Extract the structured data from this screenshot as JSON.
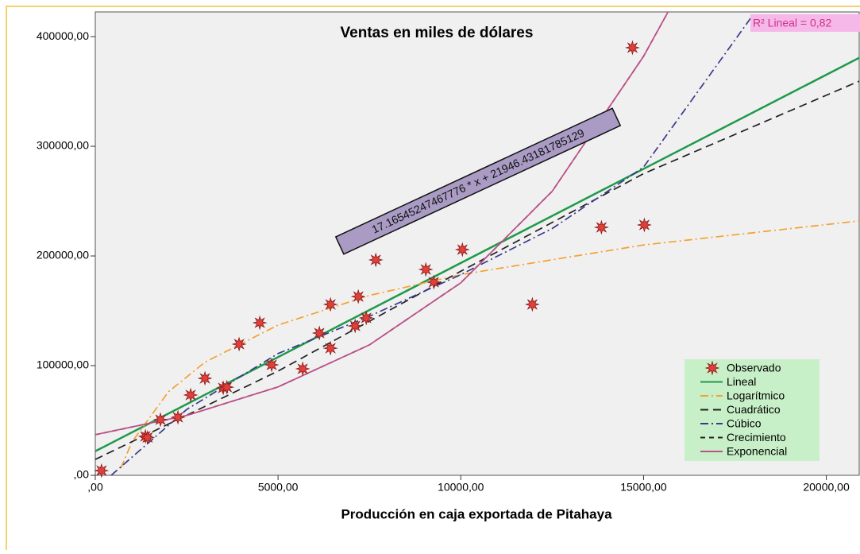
{
  "chart_data": {
    "type": "scatter",
    "title": "Ventas en miles de dólares",
    "x_label": "Producción en caja exportada de Pitahaya",
    "annotation": "17.16545247467776 * x + 21946.43181785129",
    "r2_label": "R² Lineal = 0,82",
    "xlim": [
      0,
      20900
    ],
    "ylim": [
      0,
      422500
    ],
    "xticks": [
      {
        "value": 0,
        "label": ",00"
      },
      {
        "value": 5000,
        "label": "5000,00"
      },
      {
        "value": 10000,
        "label": "10000,00"
      },
      {
        "value": 15000,
        "label": "15000,00"
      },
      {
        "value": 20000,
        "label": "20000,00"
      }
    ],
    "yticks": [
      {
        "value": 0,
        "label": ",00"
      },
      {
        "value": 100000,
        "label": "100000,00"
      },
      {
        "value": 200000,
        "label": "200000,00"
      },
      {
        "value": 300000,
        "label": "300000,00"
      },
      {
        "value": 400000,
        "label": "400000,00"
      }
    ],
    "series": [
      {
        "name": "Observado",
        "color": "#e0403a",
        "style": "marker",
        "x": [
          170,
          1370,
          1430,
          1783,
          2261,
          2609,
          3000,
          3500,
          3600,
          3935,
          4500,
          4826,
          5674,
          6130,
          6435,
          6435,
          7109,
          7196,
          7413,
          7674,
          9043,
          9261,
          10043,
          11957,
          13848,
          14696,
          15022
        ],
        "values": [
          4300,
          35500,
          34500,
          50700,
          52900,
          73200,
          88400,
          79700,
          80400,
          119600,
          139100,
          100700,
          97100,
          129700,
          155800,
          115900,
          136200,
          163000,
          143500,
          196400,
          187700,
          176100,
          205800,
          155800,
          226100,
          389900,
          228300
        ]
      },
      {
        "name": "Lineal",
        "color": "#1e9a4a",
        "style": "solid",
        "x": [
          0,
          20900
        ],
        "values": [
          21946,
          380700
        ]
      },
      {
        "name": "Logarítmico",
        "color": "#f5a030",
        "style": "dashdot",
        "x": [
          700,
          1000,
          2000,
          3000,
          5000,
          7500,
          10000,
          15000,
          20900
        ],
        "values": [
          6500,
          30200,
          76200,
          103100,
          137000,
          164000,
          183000,
          210000,
          232000
        ]
      },
      {
        "name": "Cuadrático",
        "color": "#222222",
        "style": "longdash",
        "x": [
          0,
          5000,
          10000,
          15000,
          20900
        ],
        "values": [
          14500,
          95000,
          186000,
          275000,
          359400
        ]
      },
      {
        "name": "Cúbico",
        "color": "#3a3a8c",
        "style": "dashdot",
        "x": [
          435,
          2500,
          5000,
          7500,
          10000,
          12500,
          15000,
          18000
        ],
        "values": [
          0,
          60000,
          111000,
          145000,
          183000,
          225000,
          281000,
          420000
        ]
      },
      {
        "name": "Crecimiento",
        "color": "#222222",
        "style": "shortdash",
        "x": [
          0,
          2500,
          5000,
          7500,
          10000,
          12500,
          15000,
          15670
        ],
        "values": [
          37000,
          54600,
          80600,
          118900,
          175500,
          259000,
          382000,
          422500
        ]
      },
      {
        "name": "Exponencial",
        "color": "#c04f8a",
        "style": "solid",
        "x": [
          0,
          2500,
          5000,
          7500,
          10000,
          12500,
          15000,
          15670
        ],
        "values": [
          37000,
          54600,
          80600,
          118900,
          175500,
          259000,
          382000,
          422500
        ]
      }
    ]
  }
}
